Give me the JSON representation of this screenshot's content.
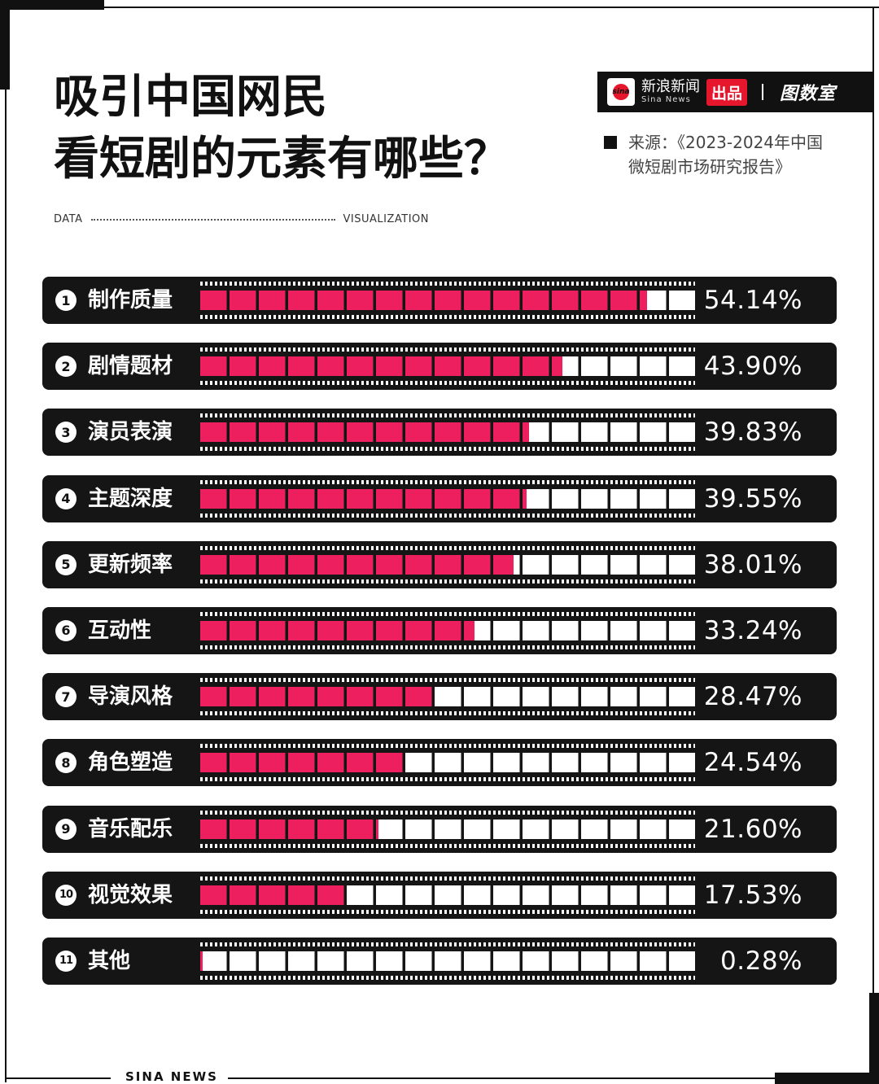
{
  "title": {
    "line1": "吸引中国网民",
    "line2": "看短剧的元素有哪些？"
  },
  "tagline": {
    "left": "DATA",
    "right": "VISUALIZATION"
  },
  "brand": {
    "logo_text": "sina",
    "name_cn": "新浪新闻",
    "name_en": "Sina News",
    "badge": "出品",
    "sub": "图数室"
  },
  "source": {
    "line1": "来源：《2023-2024年中国",
    "line2": "微短剧市场研究报告》"
  },
  "footer": "SINA NEWS",
  "colors": {
    "accent": "#ee1f5e",
    "highlight": "#f7a9c8",
    "bar_bg": "#151515"
  },
  "chart_data": {
    "type": "bar",
    "title": "吸引中国网民看短剧的元素有哪些？",
    "xlabel": "",
    "ylabel": "",
    "ylim": [
      0,
      60
    ],
    "categories": [
      "制作质量",
      "剧情题材",
      "演员表演",
      "主题深度",
      "更新频率",
      "互动性",
      "导演风格",
      "角色塑造",
      "音乐配乐",
      "视觉效果",
      "其他"
    ],
    "ranks": [
      "1",
      "2",
      "3",
      "4",
      "5",
      "6",
      "7",
      "8",
      "9",
      "10",
      "11"
    ],
    "values": [
      54.14,
      43.9,
      39.83,
      39.55,
      38.01,
      33.24,
      28.47,
      24.54,
      21.6,
      17.53,
      0.28
    ],
    "labels": [
      "54.14%",
      "43.90%",
      "39.83%",
      "39.55%",
      "38.01%",
      "33.24%",
      "28.47%",
      "24.54%",
      "21.60%",
      "17.53%",
      "0.28%"
    ]
  }
}
